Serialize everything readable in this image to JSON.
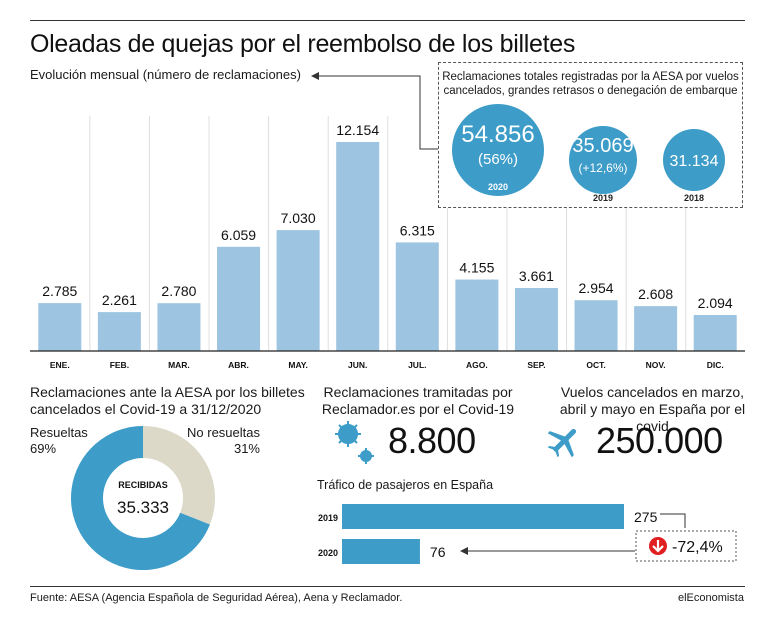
{
  "title": "Oleadas de quejas por el reembolso de los billetes",
  "monthly": {
    "subtitle": "Evolución mensual (número de reclamaciones)"
  },
  "totals_box": {
    "heading_line1": "Reclamaciones totales registradas por la AESA por vuelos",
    "heading_line2": "cancelados, grandes retrasos o denegación de embarque",
    "bubbles": [
      {
        "value": "54.856",
        "sub": "(56%)",
        "year": "2020"
      },
      {
        "value": "35.069",
        "sub": "(+12,6%)",
        "year": "2019"
      },
      {
        "value": "31.134",
        "sub": "",
        "year": "2018"
      }
    ]
  },
  "donut": {
    "title_line1": "Reclamaciones ante la AESA por los billetes",
    "title_line2": "cancelados el Covid-19 a 31/12/2020",
    "resolved_label": "Resueltas",
    "resolved_pct": "69%",
    "unresolved_label": "No resueltas",
    "unresolved_pct": "31%",
    "center_label": "RECIBIDAS",
    "center_value": "35.333",
    "color_resolved": "#3d9cc8",
    "color_unresolved": "#dcd9c9"
  },
  "reclamador": {
    "title_line1": "Reclamaciones tramitadas por",
    "title_line2": "Reclamador.es por el Covid-19",
    "value": "8.800",
    "icon": "virus-icon"
  },
  "flights": {
    "title_line1": "Vuelos cancelados en marzo,",
    "title_line2": "abril y mayo en España por el covid",
    "value": "250.000",
    "icon": "airplane-icon"
  },
  "traffic": {
    "title": "Tráfico de pasajeros en España",
    "change": "-72,4%",
    "icon": "down-arrow-icon"
  },
  "footer": {
    "source": "Fuente: AESA (Agencia Española de Seguridad Aérea), Aena y Reclamador.",
    "brand": "elEconomista"
  },
  "chart_data": [
    {
      "type": "bar",
      "categories": [
        "ENE.",
        "FEB.",
        "MAR.",
        "ABR.",
        "MAY.",
        "JUN.",
        "JUL.",
        "AGO.",
        "SEP.",
        "OCT.",
        "NOV.",
        "DIC."
      ],
      "values": [
        2785,
        2261,
        2780,
        6059,
        7030,
        12154,
        6315,
        4155,
        3661,
        2954,
        2608,
        2094
      ],
      "value_labels": [
        "2.785",
        "2.261",
        "2.780",
        "6.059",
        "7.030",
        "12.154",
        "6.315",
        "4.155",
        "3.661",
        "2.954",
        "2.608",
        "2.094"
      ],
      "title": "Evolución mensual (número de reclamaciones)",
      "ylim": [
        0,
        12154
      ],
      "grid": true,
      "color": "#9dc4e0"
    },
    {
      "type": "pie",
      "categories": [
        "Resueltas",
        "No resueltas"
      ],
      "values": [
        69,
        31
      ],
      "total": 35333
    },
    {
      "type": "bar",
      "orientation": "horizontal",
      "title": "Tráfico de pasajeros en España",
      "categories": [
        "2019",
        "2020"
      ],
      "values": [
        275,
        76
      ],
      "value_labels": [
        "275",
        "76"
      ],
      "color": "#3d9cc8"
    }
  ]
}
